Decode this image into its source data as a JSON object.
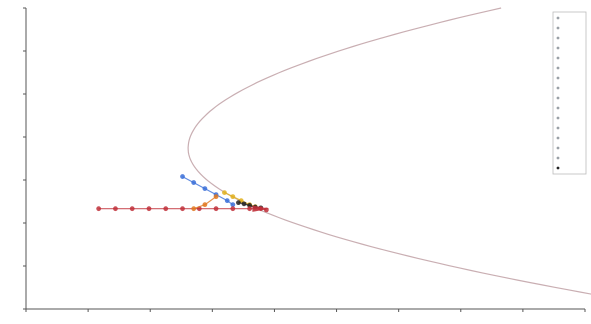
{
  "chart_data": {
    "type": "scatter",
    "title": "",
    "xlabel": "",
    "ylabel": "",
    "xlim": [
      -1,
      9
    ],
    "ylim": [
      -0.5,
      7
    ],
    "grid": false,
    "legend_position": "top-right",
    "colors": {
      "axis": "#555555",
      "curve": "#c0a0a4",
      "blue": "#3a6fd8",
      "yellow": "#e0b020",
      "red": "#c0303a",
      "dark": "#222222",
      "orange": "#e07820"
    },
    "curve": {
      "type": "parabola",
      "description_values": {
        "vertex": [
          1.9,
          3.5
        ],
        "x_at_ends": [
          7.5,
          9.4
        ],
        "y_at_top": 7.0,
        "y_at_bottom": -0.2
      }
    },
    "series": [
      {
        "color_key": "blue",
        "points": [
          [
            1.8,
            2.8
          ],
          [
            2.0,
            2.65
          ],
          [
            2.2,
            2.5
          ],
          [
            2.4,
            2.35
          ],
          [
            2.6,
            2.2
          ],
          [
            2.7,
            2.1
          ]
        ]
      },
      {
        "color_key": "yellow",
        "points": [
          [
            2.55,
            2.4
          ],
          [
            2.7,
            2.3
          ],
          [
            2.85,
            2.2
          ],
          [
            3.0,
            2.1
          ],
          [
            3.1,
            2.05
          ]
        ]
      },
      {
        "color_key": "dark",
        "points": [
          [
            2.8,
            2.15
          ],
          [
            2.9,
            2.12
          ],
          [
            3.0,
            2.08
          ],
          [
            3.1,
            2.04
          ],
          [
            3.2,
            2.02
          ]
        ]
      },
      {
        "color_key": "red",
        "points": [
          [
            0.3,
            2.0
          ],
          [
            0.6,
            2.0
          ],
          [
            0.9,
            2.0
          ],
          [
            1.2,
            2.0
          ],
          [
            1.5,
            2.0
          ],
          [
            1.8,
            2.0
          ],
          [
            2.1,
            2.0
          ],
          [
            2.4,
            2.0
          ],
          [
            2.7,
            2.0
          ],
          [
            3.0,
            2.0
          ],
          [
            3.2,
            2.0
          ],
          [
            3.3,
            1.97
          ]
        ]
      },
      {
        "color_key": "orange",
        "points": [
          [
            2.4,
            2.3
          ],
          [
            2.2,
            2.1
          ],
          [
            2.0,
            2.0
          ]
        ]
      }
    ],
    "legend_entries": [
      "",
      "",
      "",
      "",
      "",
      "",
      "",
      "",
      "",
      "",
      "",
      "",
      "",
      "",
      "",
      ""
    ]
  }
}
